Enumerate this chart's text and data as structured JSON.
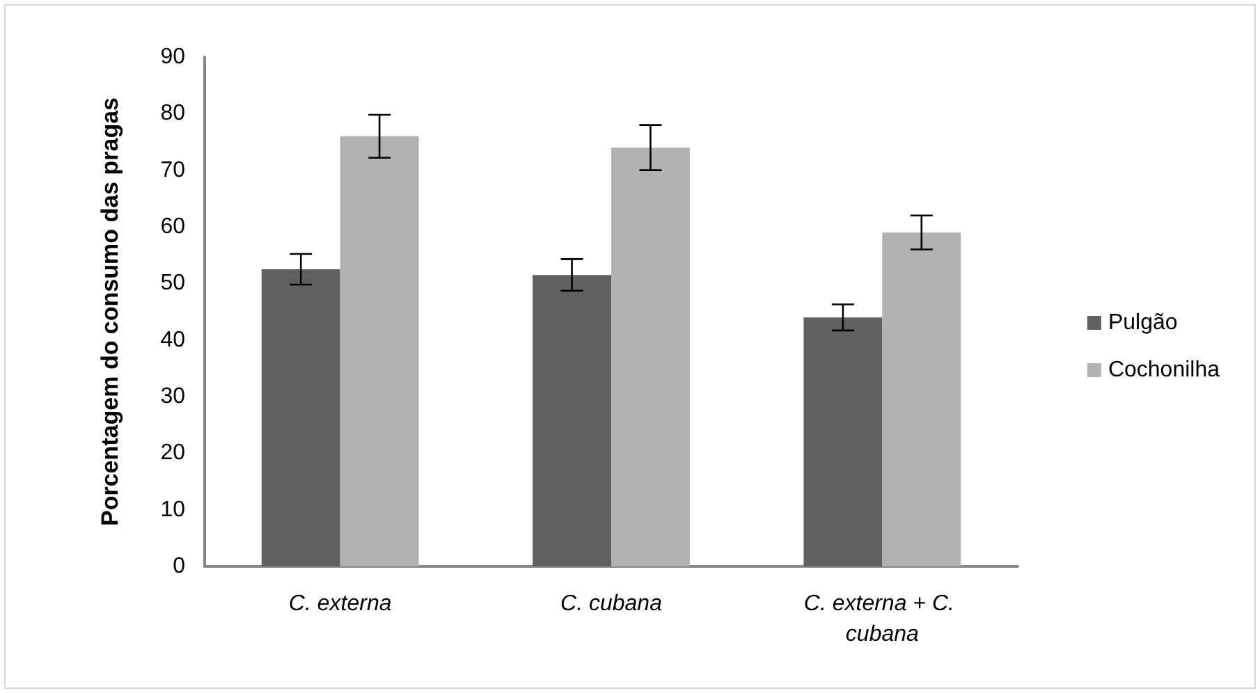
{
  "chart_data": {
    "type": "bar",
    "ylabel": "Porcentagem do consumo das pragas",
    "categories": [
      "C. externa",
      "C. cubana",
      "C. externa + C. cubana"
    ],
    "series": [
      {
        "name": "Pulgão",
        "color": "#606060",
        "values": [
          52.5,
          51.5,
          44
        ],
        "errors": [
          2.7,
          2.8,
          2.3
        ]
      },
      {
        "name": "Cochonilha",
        "color": "#b2b2b2",
        "values": [
          76,
          74,
          59
        ],
        "errors": [
          3.8,
          4,
          3
        ]
      }
    ],
    "ylim": [
      0,
      90
    ],
    "yticks": [
      0,
      10,
      20,
      30,
      40,
      50,
      60,
      70,
      80,
      90
    ],
    "grid": false,
    "legend": "right"
  }
}
